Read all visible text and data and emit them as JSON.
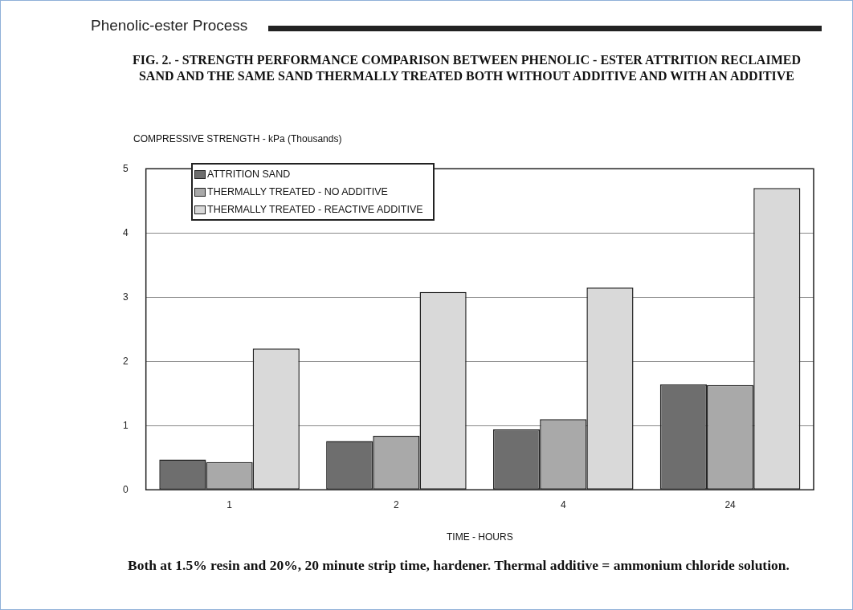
{
  "chart_data": {
    "type": "bar",
    "title": "FIG. 2. - STRENGTH PERFORMANCE COMPARISON BETWEEN PHENOLIC - ESTER ATTRITION RECLAIMED SAND AND THE SAME SAND THERMALLY TREATED BOTH WITHOUT ADDITIVE AND WITH AN ADDITIVE",
    "ylabel": "COMPRESSIVE STRENGTH - kPa (Thousands)",
    "xlabel": "TIME - HOURS",
    "categories": [
      "1",
      "2",
      "4",
      "24"
    ],
    "series": [
      {
        "name": "ATTRITION SAND",
        "color": "#6e6e6e",
        "values": [
          0.47,
          0.76,
          0.94,
          1.64
        ]
      },
      {
        "name": "THERMALLY TREATED - NO ADDITIVE",
        "color": "#a9a9a9",
        "values": [
          0.43,
          0.84,
          1.1,
          1.63
        ]
      },
      {
        "name": "THERMALLY TREATED - REACTIVE ADDITIVE",
        "color": "#d9d9d9",
        "values": [
          2.2,
          3.08,
          3.15,
          4.7
        ]
      }
    ],
    "ylim": [
      0,
      5
    ],
    "yticks": [
      0,
      1,
      2,
      3,
      4,
      5
    ],
    "grid": "y",
    "legend": "top left",
    "annotations": [
      "Phenolic-ester Process",
      "Both at 1.5% resin and 20%, 20 minute strip time, hardener. Thermal additive = ammonium chloride solution."
    ]
  }
}
